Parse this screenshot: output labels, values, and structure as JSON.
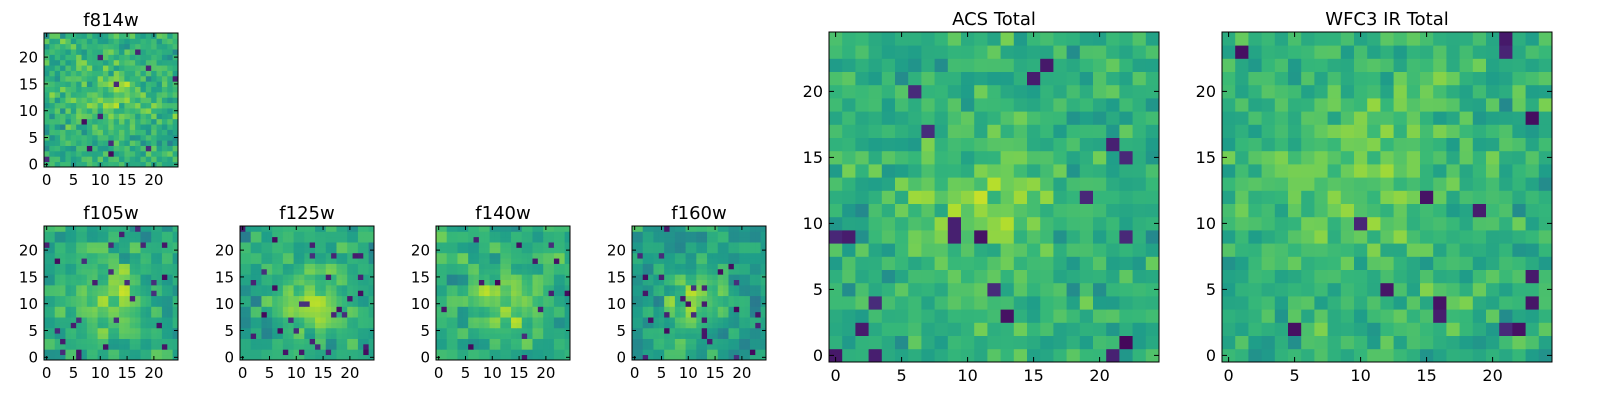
{
  "chart_data": [
    {
      "type": "heatmap",
      "title": "f814w",
      "xlabel": "",
      "ylabel": "",
      "grid_size": [
        25,
        25
      ],
      "xlim": [
        -0.5,
        24.5
      ],
      "ylim": [
        -0.5,
        24.5
      ],
      "x_ticks": [
        0,
        5,
        10,
        15,
        20
      ],
      "y_ticks": [
        0,
        5,
        10,
        15,
        20
      ],
      "colormap": "viridis",
      "value_range": [
        0,
        1
      ],
      "center": [
        12,
        12
      ],
      "sigma": 4,
      "mean": 0.64,
      "amp": 0.14,
      "noise": 0.22,
      "seed": 11,
      "patch": 1
    },
    {
      "type": "heatmap",
      "title": "f105w",
      "xlabel": "",
      "ylabel": "",
      "grid_size": [
        25,
        25
      ],
      "xlim": [
        -0.5,
        24.5
      ],
      "ylim": [
        -0.5,
        24.5
      ],
      "x_ticks": [
        0,
        5,
        10,
        15,
        20
      ],
      "y_ticks": [
        0,
        5,
        10,
        15,
        20
      ],
      "colormap": "viridis",
      "value_range": [
        0,
        1
      ],
      "center": [
        12,
        11
      ],
      "sigma": 5,
      "mean": 0.6,
      "amp": 0.2,
      "noise": 0.2,
      "seed": 23,
      "patch": 2
    },
    {
      "type": "heatmap",
      "title": "f125w",
      "xlabel": "",
      "ylabel": "",
      "grid_size": [
        25,
        25
      ],
      "xlim": [
        -0.5,
        24.5
      ],
      "ylim": [
        -0.5,
        24.5
      ],
      "x_ticks": [
        0,
        5,
        10,
        15,
        20
      ],
      "y_ticks": [
        0,
        5,
        10,
        15,
        20
      ],
      "colormap": "viridis",
      "value_range": [
        0,
        1
      ],
      "center": [
        13,
        10
      ],
      "sigma": 4,
      "mean": 0.6,
      "amp": 0.25,
      "noise": 0.2,
      "seed": 37,
      "patch": 2
    },
    {
      "type": "heatmap",
      "title": "f140w",
      "xlabel": "",
      "ylabel": "",
      "grid_size": [
        25,
        25
      ],
      "xlim": [
        -0.5,
        24.5
      ],
      "ylim": [
        -0.5,
        24.5
      ],
      "x_ticks": [
        0,
        5,
        10,
        15,
        20
      ],
      "y_ticks": [
        0,
        5,
        10,
        15,
        20
      ],
      "colormap": "viridis",
      "value_range": [
        0,
        1
      ],
      "center": [
        12,
        11
      ],
      "sigma": 4,
      "mean": 0.62,
      "amp": 0.2,
      "noise": 0.22,
      "seed": 41,
      "patch": 2
    },
    {
      "type": "heatmap",
      "title": "f160w",
      "xlabel": "",
      "ylabel": "",
      "grid_size": [
        25,
        25
      ],
      "xlim": [
        -0.5,
        24.5
      ],
      "ylim": [
        -0.5,
        24.5
      ],
      "x_ticks": [
        0,
        5,
        10,
        15,
        20
      ],
      "y_ticks": [
        0,
        5,
        10,
        15,
        20
      ],
      "colormap": "viridis",
      "value_range": [
        0,
        1
      ],
      "center": [
        11,
        10
      ],
      "sigma": 4,
      "mean": 0.56,
      "amp": 0.25,
      "noise": 0.2,
      "seed": 53,
      "patch": 2
    },
    {
      "type": "heatmap",
      "title": "ACS Total",
      "xlabel": "",
      "ylabel": "",
      "grid_size": [
        25,
        25
      ],
      "xlim": [
        -0.5,
        24.5
      ],
      "ylim": [
        -0.5,
        24.5
      ],
      "x_ticks": [
        0,
        5,
        10,
        15,
        20
      ],
      "y_ticks": [
        0,
        5,
        10,
        15,
        20
      ],
      "colormap": "viridis",
      "value_range": [
        0,
        1
      ],
      "center": [
        11,
        11
      ],
      "sigma": 4,
      "mean": 0.63,
      "amp": 0.16,
      "noise": 0.2,
      "seed": 67,
      "patch": 1
    },
    {
      "type": "heatmap",
      "title": "WFC3 IR Total",
      "xlabel": "",
      "ylabel": "",
      "grid_size": [
        25,
        25
      ],
      "xlim": [
        -0.5,
        24.5
      ],
      "ylim": [
        -0.5,
        24.5
      ],
      "x_ticks": [
        0,
        5,
        10,
        15,
        20
      ],
      "y_ticks": [
        0,
        5,
        10,
        15,
        20
      ],
      "colormap": "viridis",
      "value_range": [
        0,
        1
      ],
      "center": [
        10,
        14
      ],
      "sigma": 5,
      "mean": 0.64,
      "amp": 0.12,
      "noise": 0.2,
      "seed": 79,
      "patch": 1
    }
  ]
}
